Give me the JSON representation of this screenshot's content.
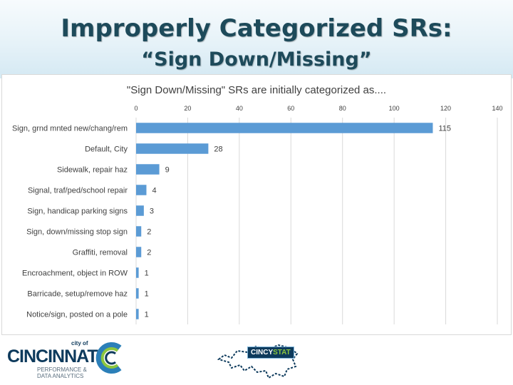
{
  "slide": {
    "title_line1": "Improperly Categorized SRs:",
    "title_line2": "“Sign Down/Missing”"
  },
  "colors": {
    "bar": "#5b9bd5",
    "title": "#1d4a5a",
    "grid": "#d9d9d9",
    "text": "#404040"
  },
  "chart_data": {
    "type": "bar",
    "orientation": "horizontal",
    "title": "\"Sign Down/Missing\" SRs are initially categorized as....",
    "categories": [
      "Sign, grnd mnted new/chang/rem",
      "Default, City",
      "Sidewalk, repair haz",
      "Signal, traf/ped/school repair",
      "Sign, handicap parking signs",
      "Sign, down/missing stop sign",
      "Graffiti, removal",
      "Encroachment, object in ROW",
      "Barricade, setup/remove haz",
      "Notice/sign, posted on a pole"
    ],
    "values": [
      115,
      28,
      9,
      4,
      3,
      2,
      2,
      1,
      1,
      1
    ],
    "xlim": [
      0,
      140
    ],
    "xticks": [
      0,
      20,
      40,
      60,
      80,
      100,
      120,
      140
    ],
    "xaxis_position": "top",
    "grid": true,
    "legend": "none",
    "xlabel": "",
    "ylabel": ""
  },
  "footer": {
    "city_small": "city of",
    "city_name": "CINCINNATI",
    "dept_line1": "PERFORMANCE &",
    "dept_line2": "DATA ANALYTICS",
    "cincystat_left": "CINCY",
    "cincystat_right": "STAT"
  }
}
